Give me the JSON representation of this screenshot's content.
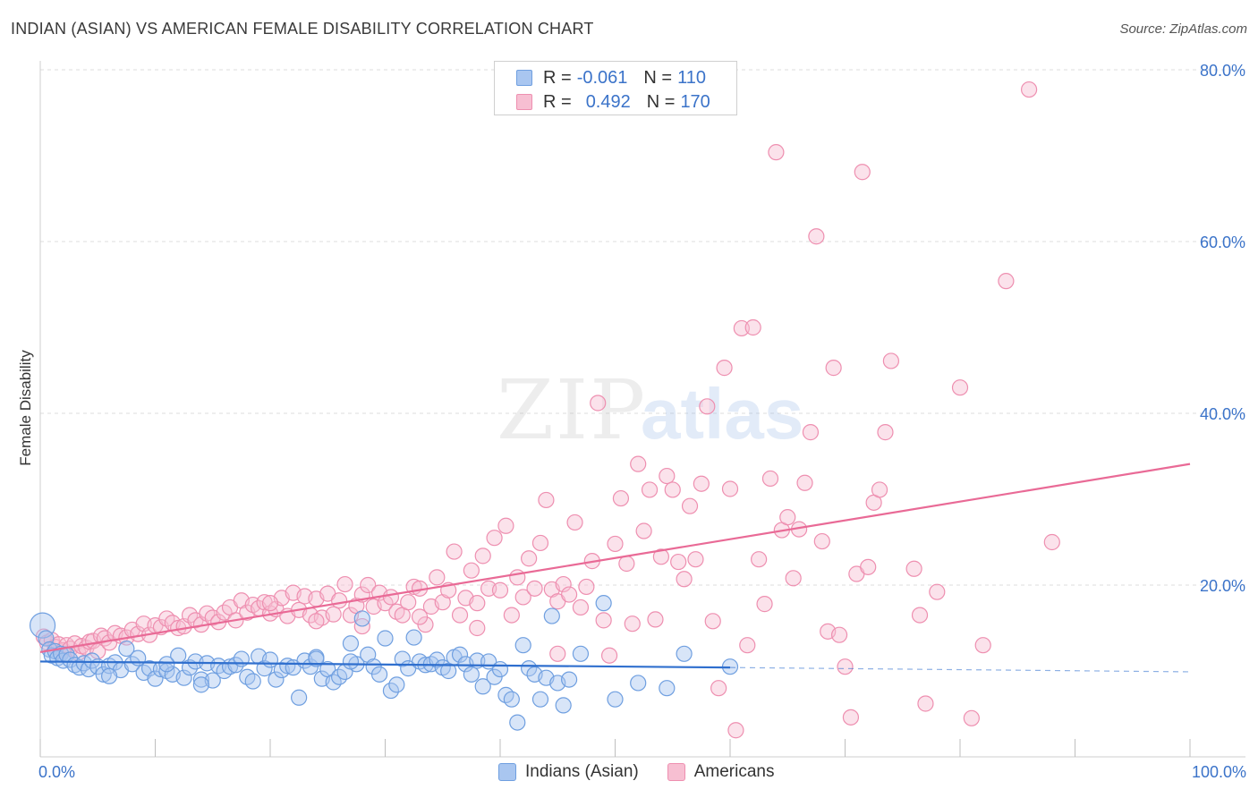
{
  "header": {
    "title": "INDIAN (ASIAN) VS AMERICAN FEMALE DISABILITY CORRELATION CHART",
    "source": "Source: ZipAtlas.com"
  },
  "legend_top": {
    "rows": [
      {
        "r_label": "R =",
        "r_value": "-0.061",
        "n_label": "N =",
        "n_value": "110"
      },
      {
        "r_label": "R =",
        "r_value": "0.492",
        "n_label": "N =",
        "n_value": "170"
      }
    ]
  },
  "legend_bottom": {
    "items": [
      {
        "label": "Indians (Asian)"
      },
      {
        "label": "Americans"
      }
    ]
  },
  "watermark": {
    "zip": "ZIP",
    "atlas": "atlas"
  },
  "colors": {
    "blue_fill": "#a9c6f0",
    "blue_stroke": "#6f9fe0",
    "blue_line": "#2f6fce",
    "pink_fill": "#f7bfd2",
    "pink_stroke": "#ee8fb0",
    "pink_line": "#e96a96",
    "axis_text": "#3b73c9",
    "grid": "#dcdcdc"
  },
  "chart_data": {
    "type": "scatter",
    "title": "INDIAN (ASIAN) VS AMERICAN FEMALE DISABILITY CORRELATION CHART",
    "xlabel": "",
    "ylabel": "Female Disability",
    "xlim": [
      0,
      100
    ],
    "ylim": [
      0,
      80
    ],
    "x_tick_labels": [
      "0.0%",
      "100.0%"
    ],
    "y_ticks": [
      20,
      40,
      60,
      80
    ],
    "y_tick_labels": [
      "20.0%",
      "40.0%",
      "60.0%",
      "80.0%"
    ],
    "grid": true,
    "legend_position": "top-center",
    "series": [
      {
        "name": "Indians (Asian)",
        "R": -0.061,
        "N": 110,
        "trend": {
          "x0": 0,
          "y0": 11.1,
          "x1": 60,
          "y1": 10.4,
          "dashed_to_x": 100,
          "dashed_to_y": 9.9
        },
        "points": [
          [
            0.2,
            15.3
          ],
          [
            0.5,
            13.8
          ],
          [
            0.8,
            12.5
          ],
          [
            1.0,
            11.8
          ],
          [
            1.3,
            12.3
          ],
          [
            1.5,
            11.5
          ],
          [
            1.8,
            12.0
          ],
          [
            2.0,
            11.2
          ],
          [
            2.3,
            11.9
          ],
          [
            2.6,
            11.3
          ],
          [
            3.0,
            10.7
          ],
          [
            3.4,
            10.4
          ],
          [
            3.8,
            10.9
          ],
          [
            4.2,
            10.2
          ],
          [
            4.5,
            11.2
          ],
          [
            5.0,
            10.5
          ],
          [
            5.5,
            9.6
          ],
          [
            6.0,
            10.6
          ],
          [
            6.5,
            11.0
          ],
          [
            7.0,
            10.1
          ],
          [
            7.5,
            12.6
          ],
          [
            8.0,
            10.8
          ],
          [
            8.5,
            11.5
          ],
          [
            9.0,
            9.8
          ],
          [
            9.5,
            10.3
          ],
          [
            10.0,
            9.1
          ],
          [
            10.5,
            10.2
          ],
          [
            11.0,
            10.0
          ],
          [
            11.5,
            9.6
          ],
          [
            12.0,
            11.8
          ],
          [
            12.5,
            9.2
          ],
          [
            13.0,
            10.4
          ],
          [
            13.5,
            11.1
          ],
          [
            14.0,
            9.0
          ],
          [
            14.5,
            10.9
          ],
          [
            15.0,
            8.9
          ],
          [
            15.5,
            10.6
          ],
          [
            16.0,
            10.0
          ],
          [
            16.5,
            10.5
          ],
          [
            17.0,
            10.7
          ],
          [
            17.5,
            11.4
          ],
          [
            18.0,
            9.3
          ],
          [
            18.5,
            8.8
          ],
          [
            19.0,
            11.7
          ],
          [
            19.5,
            10.3
          ],
          [
            20.0,
            11.3
          ],
          [
            20.5,
            9.0
          ],
          [
            21.0,
            10.1
          ],
          [
            21.5,
            10.6
          ],
          [
            22.0,
            10.4
          ],
          [
            22.5,
            6.9
          ],
          [
            23.0,
            11.2
          ],
          [
            23.5,
            10.5
          ],
          [
            24.0,
            11.6
          ],
          [
            24.5,
            9.1
          ],
          [
            25.0,
            10.2
          ],
          [
            25.5,
            8.7
          ],
          [
            26.0,
            9.3
          ],
          [
            26.5,
            9.9
          ],
          [
            27.0,
            13.2
          ],
          [
            27.5,
            10.8
          ],
          [
            28.0,
            16.1
          ],
          [
            28.5,
            11.9
          ],
          [
            29.0,
            10.5
          ],
          [
            29.5,
            9.6
          ],
          [
            30.0,
            13.8
          ],
          [
            30.5,
            7.7
          ],
          [
            31.0,
            8.4
          ],
          [
            31.5,
            11.4
          ],
          [
            32.0,
            10.3
          ],
          [
            32.5,
            13.9
          ],
          [
            33.0,
            11.1
          ],
          [
            33.5,
            10.7
          ],
          [
            34.0,
            10.8
          ],
          [
            34.5,
            11.3
          ],
          [
            35.0,
            10.4
          ],
          [
            35.5,
            10.0
          ],
          [
            36.0,
            11.6
          ],
          [
            36.5,
            11.9
          ],
          [
            37.0,
            10.8
          ],
          [
            37.5,
            9.6
          ],
          [
            38.0,
            11.2
          ],
          [
            38.5,
            8.2
          ],
          [
            39.0,
            11.1
          ],
          [
            39.5,
            9.3
          ],
          [
            40.0,
            10.2
          ],
          [
            40.5,
            7.2
          ],
          [
            41.0,
            6.7
          ],
          [
            41.5,
            4.0
          ],
          [
            42.0,
            13.0
          ],
          [
            42.5,
            10.3
          ],
          [
            43.0,
            9.6
          ],
          [
            43.5,
            6.7
          ],
          [
            44.0,
            9.2
          ],
          [
            44.5,
            16.4
          ],
          [
            45.0,
            8.6
          ],
          [
            45.5,
            6.0
          ],
          [
            46.0,
            9.0
          ],
          [
            47.0,
            12.0
          ],
          [
            49.0,
            17.9
          ],
          [
            50.0,
            6.7
          ],
          [
            52.0,
            8.6
          ],
          [
            54.5,
            8.0
          ],
          [
            56.0,
            12.0
          ],
          [
            60.0,
            10.5
          ],
          [
            27.0,
            11.1
          ],
          [
            24.0,
            11.4
          ],
          [
            14.0,
            8.4
          ],
          [
            11.0,
            10.8
          ],
          [
            6.0,
            9.4
          ]
        ]
      },
      {
        "name": "Americans",
        "R": 0.492,
        "N": 170,
        "trend": {
          "x0": 0,
          "y0": 12.2,
          "x1": 100,
          "y1": 34.1
        },
        "points": [
          [
            0.3,
            14.0
          ],
          [
            0.6,
            13.3
          ],
          [
            1.0,
            13.6
          ],
          [
            1.3,
            12.8
          ],
          [
            1.6,
            13.1
          ],
          [
            2.0,
            12.4
          ],
          [
            2.3,
            13.0
          ],
          [
            2.6,
            12.6
          ],
          [
            3.0,
            13.2
          ],
          [
            3.3,
            12.1
          ],
          [
            3.6,
            12.9
          ],
          [
            4.0,
            12.7
          ],
          [
            4.3,
            13.4
          ],
          [
            4.6,
            13.5
          ],
          [
            5.0,
            12.3
          ],
          [
            5.3,
            14.1
          ],
          [
            5.6,
            13.8
          ],
          [
            6.0,
            13.3
          ],
          [
            6.5,
            14.4
          ],
          [
            7.0,
            14.1
          ],
          [
            7.5,
            13.9
          ],
          [
            8.0,
            14.8
          ],
          [
            8.5,
            14.3
          ],
          [
            9.0,
            15.5
          ],
          [
            9.5,
            14.2
          ],
          [
            10.0,
            15.3
          ],
          [
            10.5,
            15.1
          ],
          [
            11.0,
            16.1
          ],
          [
            11.5,
            15.6
          ],
          [
            12.0,
            15.0
          ],
          [
            12.5,
            15.2
          ],
          [
            13.0,
            16.5
          ],
          [
            13.5,
            15.9
          ],
          [
            14.0,
            15.4
          ],
          [
            14.5,
            16.7
          ],
          [
            15.0,
            16.2
          ],
          [
            15.5,
            15.7
          ],
          [
            16.0,
            16.8
          ],
          [
            16.5,
            17.4
          ],
          [
            17.0,
            15.9
          ],
          [
            17.5,
            18.2
          ],
          [
            18.0,
            16.8
          ],
          [
            18.5,
            17.7
          ],
          [
            19.0,
            17.3
          ],
          [
            19.5,
            18.0
          ],
          [
            20.0,
            16.7
          ],
          [
            20.5,
            17.2
          ],
          [
            21.0,
            18.5
          ],
          [
            21.5,
            16.4
          ],
          [
            22.0,
            19.1
          ],
          [
            22.5,
            17.1
          ],
          [
            23.0,
            18.7
          ],
          [
            23.5,
            16.5
          ],
          [
            24.0,
            18.4
          ],
          [
            24.5,
            16.2
          ],
          [
            25.0,
            19.0
          ],
          [
            25.5,
            16.6
          ],
          [
            26.0,
            18.2
          ],
          [
            26.5,
            20.1
          ],
          [
            27.0,
            16.5
          ],
          [
            27.5,
            17.6
          ],
          [
            28.0,
            18.9
          ],
          [
            28.5,
            20.0
          ],
          [
            29.0,
            17.5
          ],
          [
            29.5,
            19.1
          ],
          [
            30.0,
            17.9
          ],
          [
            30.5,
            18.6
          ],
          [
            31.0,
            16.9
          ],
          [
            31.5,
            16.5
          ],
          [
            32.0,
            18.0
          ],
          [
            32.5,
            19.8
          ],
          [
            33.0,
            19.6
          ],
          [
            33.5,
            15.4
          ],
          [
            34.0,
            17.5
          ],
          [
            34.5,
            20.9
          ],
          [
            35.0,
            18.0
          ],
          [
            35.5,
            19.4
          ],
          [
            36.0,
            23.9
          ],
          [
            36.5,
            16.5
          ],
          [
            37.0,
            18.5
          ],
          [
            37.5,
            21.7
          ],
          [
            38.0,
            17.9
          ],
          [
            38.5,
            23.4
          ],
          [
            39.0,
            19.6
          ],
          [
            39.5,
            25.5
          ],
          [
            40.0,
            19.4
          ],
          [
            40.5,
            26.9
          ],
          [
            41.0,
            16.5
          ],
          [
            41.5,
            20.9
          ],
          [
            42.0,
            18.6
          ],
          [
            42.5,
            23.1
          ],
          [
            43.0,
            19.6
          ],
          [
            43.5,
            24.9
          ],
          [
            44.0,
            29.9
          ],
          [
            44.5,
            19.5
          ],
          [
            45.0,
            18.1
          ],
          [
            45.5,
            20.1
          ],
          [
            46.0,
            18.9
          ],
          [
            46.5,
            27.3
          ],
          [
            47.0,
            17.4
          ],
          [
            47.5,
            19.8
          ],
          [
            48.0,
            22.8
          ],
          [
            48.5,
            41.2
          ],
          [
            49.0,
            15.9
          ],
          [
            49.5,
            11.8
          ],
          [
            50.0,
            24.8
          ],
          [
            50.5,
            30.1
          ],
          [
            51.0,
            22.5
          ],
          [
            51.5,
            15.5
          ],
          [
            52.0,
            34.1
          ],
          [
            52.5,
            26.3
          ],
          [
            53.0,
            31.1
          ],
          [
            53.5,
            16.0
          ],
          [
            54.0,
            23.3
          ],
          [
            54.5,
            32.7
          ],
          [
            55.0,
            31.1
          ],
          [
            55.5,
            22.7
          ],
          [
            56.0,
            20.7
          ],
          [
            56.5,
            29.2
          ],
          [
            57.0,
            23.0
          ],
          [
            57.5,
            31.8
          ],
          [
            58.0,
            40.8
          ],
          [
            58.5,
            15.8
          ],
          [
            59.0,
            8.0
          ],
          [
            59.5,
            45.3
          ],
          [
            60.0,
            31.2
          ],
          [
            60.5,
            3.1
          ],
          [
            61.0,
            49.9
          ],
          [
            61.5,
            13.0
          ],
          [
            62.0,
            50.0
          ],
          [
            62.5,
            23.0
          ],
          [
            63.0,
            17.8
          ],
          [
            63.5,
            32.4
          ],
          [
            64.0,
            70.4
          ],
          [
            64.5,
            26.4
          ],
          [
            65.0,
            27.9
          ],
          [
            65.5,
            20.8
          ],
          [
            66.0,
            26.5
          ],
          [
            66.5,
            31.9
          ],
          [
            67.0,
            37.8
          ],
          [
            67.5,
            60.6
          ],
          [
            68.0,
            25.1
          ],
          [
            68.5,
            14.6
          ],
          [
            69.0,
            45.3
          ],
          [
            69.5,
            14.2
          ],
          [
            70.0,
            10.5
          ],
          [
            70.5,
            4.6
          ],
          [
            71.0,
            21.3
          ],
          [
            71.5,
            68.1
          ],
          [
            72.0,
            22.1
          ],
          [
            72.5,
            29.6
          ],
          [
            73.0,
            31.1
          ],
          [
            73.5,
            37.8
          ],
          [
            74.0,
            46.1
          ],
          [
            76.0,
            21.9
          ],
          [
            76.5,
            16.5
          ],
          [
            77.0,
            6.2
          ],
          [
            78.0,
            19.2
          ],
          [
            80.0,
            43.0
          ],
          [
            81.0,
            4.5
          ],
          [
            82.0,
            13.0
          ],
          [
            84.0,
            55.4
          ],
          [
            86.0,
            77.7
          ],
          [
            88.0,
            25.0
          ],
          [
            45.0,
            12.0
          ],
          [
            38.0,
            15.0
          ],
          [
            33.0,
            16.3
          ],
          [
            28.0,
            15.2
          ],
          [
            24.0,
            15.8
          ],
          [
            20.0,
            17.9
          ]
        ]
      }
    ]
  }
}
